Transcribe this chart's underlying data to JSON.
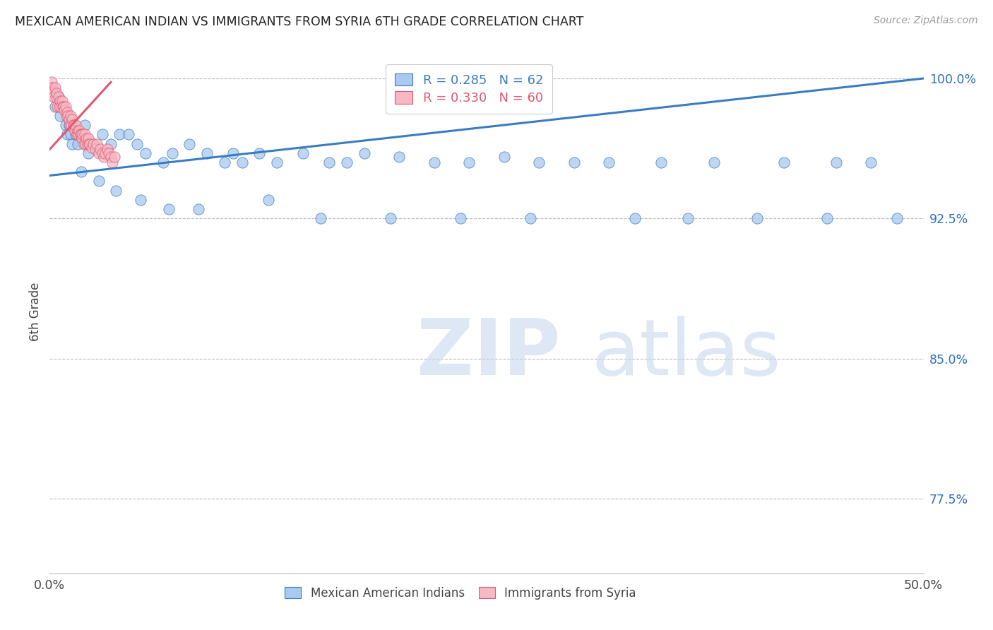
{
  "title": "MEXICAN AMERICAN INDIAN VS IMMIGRANTS FROM SYRIA 6TH GRADE CORRELATION CHART",
  "source": "Source: ZipAtlas.com",
  "ylabel": "6th Grade",
  "y_ticks": [
    77.5,
    85.0,
    92.5,
    100.0
  ],
  "y_tick_labels": [
    "77.5%",
    "85.0%",
    "92.5%",
    "100.0%"
  ],
  "xlim": [
    0.0,
    50.0
  ],
  "ylim": [
    73.5,
    101.5
  ],
  "blue_R": 0.285,
  "blue_N": 62,
  "pink_R": 0.33,
  "pink_N": 60,
  "blue_color": "#aac9f0",
  "pink_color": "#f5b8c4",
  "blue_line_color": "#3a7cc1",
  "pink_line_color": "#e05870",
  "legend_label_blue": "Mexican American Indians",
  "legend_label_pink": "Immigrants from Syria",
  "watermark_zip": "ZIP",
  "watermark_atlas": "atlas",
  "blue_trend_x": [
    0.0,
    50.0
  ],
  "blue_trend_y": [
    94.8,
    100.0
  ],
  "pink_trend_x": [
    0.0,
    3.5
  ],
  "pink_trend_y": [
    96.2,
    99.8
  ],
  "blue_scatter_x": [
    0.3,
    0.5,
    0.6,
    0.7,
    0.9,
    1.0,
    1.1,
    1.2,
    1.3,
    1.5,
    1.6,
    2.0,
    2.2,
    2.5,
    3.0,
    3.2,
    3.5,
    4.0,
    4.5,
    5.0,
    5.5,
    6.5,
    7.0,
    8.0,
    9.0,
    10.0,
    10.5,
    11.0,
    12.0,
    13.0,
    14.5,
    16.0,
    17.0,
    18.0,
    20.0,
    22.0,
    24.0,
    26.0,
    28.0,
    30.0,
    32.0,
    35.0,
    38.0,
    42.0,
    45.0,
    47.0,
    1.8,
    2.8,
    3.8,
    5.2,
    6.8,
    8.5,
    12.5,
    15.5,
    19.5,
    23.5,
    27.5,
    33.5,
    36.5,
    40.5,
    44.5,
    48.5
  ],
  "blue_scatter_y": [
    98.5,
    99.0,
    98.0,
    98.5,
    97.5,
    97.0,
    97.5,
    97.0,
    96.5,
    97.0,
    96.5,
    97.5,
    96.0,
    96.5,
    97.0,
    96.0,
    96.5,
    97.0,
    97.0,
    96.5,
    96.0,
    95.5,
    96.0,
    96.5,
    96.0,
    95.5,
    96.0,
    95.5,
    96.0,
    95.5,
    96.0,
    95.5,
    95.5,
    96.0,
    95.8,
    95.5,
    95.5,
    95.8,
    95.5,
    95.5,
    95.5,
    95.5,
    95.5,
    95.5,
    95.5,
    95.5,
    95.0,
    94.5,
    94.0,
    93.5,
    93.0,
    93.0,
    93.5,
    92.5,
    92.5,
    92.5,
    92.5,
    92.5,
    92.5,
    92.5,
    92.5,
    92.5
  ],
  "pink_scatter_x": [
    0.05,
    0.1,
    0.15,
    0.2,
    0.25,
    0.3,
    0.35,
    0.4,
    0.45,
    0.5,
    0.55,
    0.6,
    0.65,
    0.7,
    0.75,
    0.8,
    0.85,
    0.9,
    0.95,
    1.0,
    1.05,
    1.1,
    1.15,
    1.2,
    1.25,
    1.3,
    1.35,
    1.4,
    1.45,
    1.5,
    1.55,
    1.6,
    1.65,
    1.7,
    1.75,
    1.8,
    1.85,
    1.9,
    1.95,
    2.0,
    2.05,
    2.1,
    2.15,
    2.2,
    2.25,
    2.3,
    2.4,
    2.5,
    2.6,
    2.7,
    2.8,
    2.9,
    3.0,
    3.1,
    3.2,
    3.3,
    3.4,
    3.5,
    3.6,
    3.7
  ],
  "pink_scatter_y": [
    99.5,
    99.8,
    99.5,
    99.3,
    99.0,
    99.5,
    99.0,
    99.2,
    98.5,
    99.0,
    98.5,
    98.8,
    98.5,
    98.8,
    98.5,
    98.5,
    98.3,
    98.5,
    98.0,
    98.2,
    98.0,
    97.8,
    97.5,
    98.0,
    97.5,
    97.8,
    97.5,
    97.5,
    97.2,
    97.5,
    97.0,
    97.2,
    97.0,
    97.2,
    97.0,
    97.0,
    96.8,
    97.0,
    96.5,
    97.0,
    96.5,
    96.8,
    96.5,
    96.8,
    96.5,
    96.5,
    96.3,
    96.5,
    96.2,
    96.5,
    96.0,
    96.2,
    96.0,
    95.8,
    96.0,
    96.2,
    96.0,
    95.8,
    95.5,
    95.8
  ]
}
